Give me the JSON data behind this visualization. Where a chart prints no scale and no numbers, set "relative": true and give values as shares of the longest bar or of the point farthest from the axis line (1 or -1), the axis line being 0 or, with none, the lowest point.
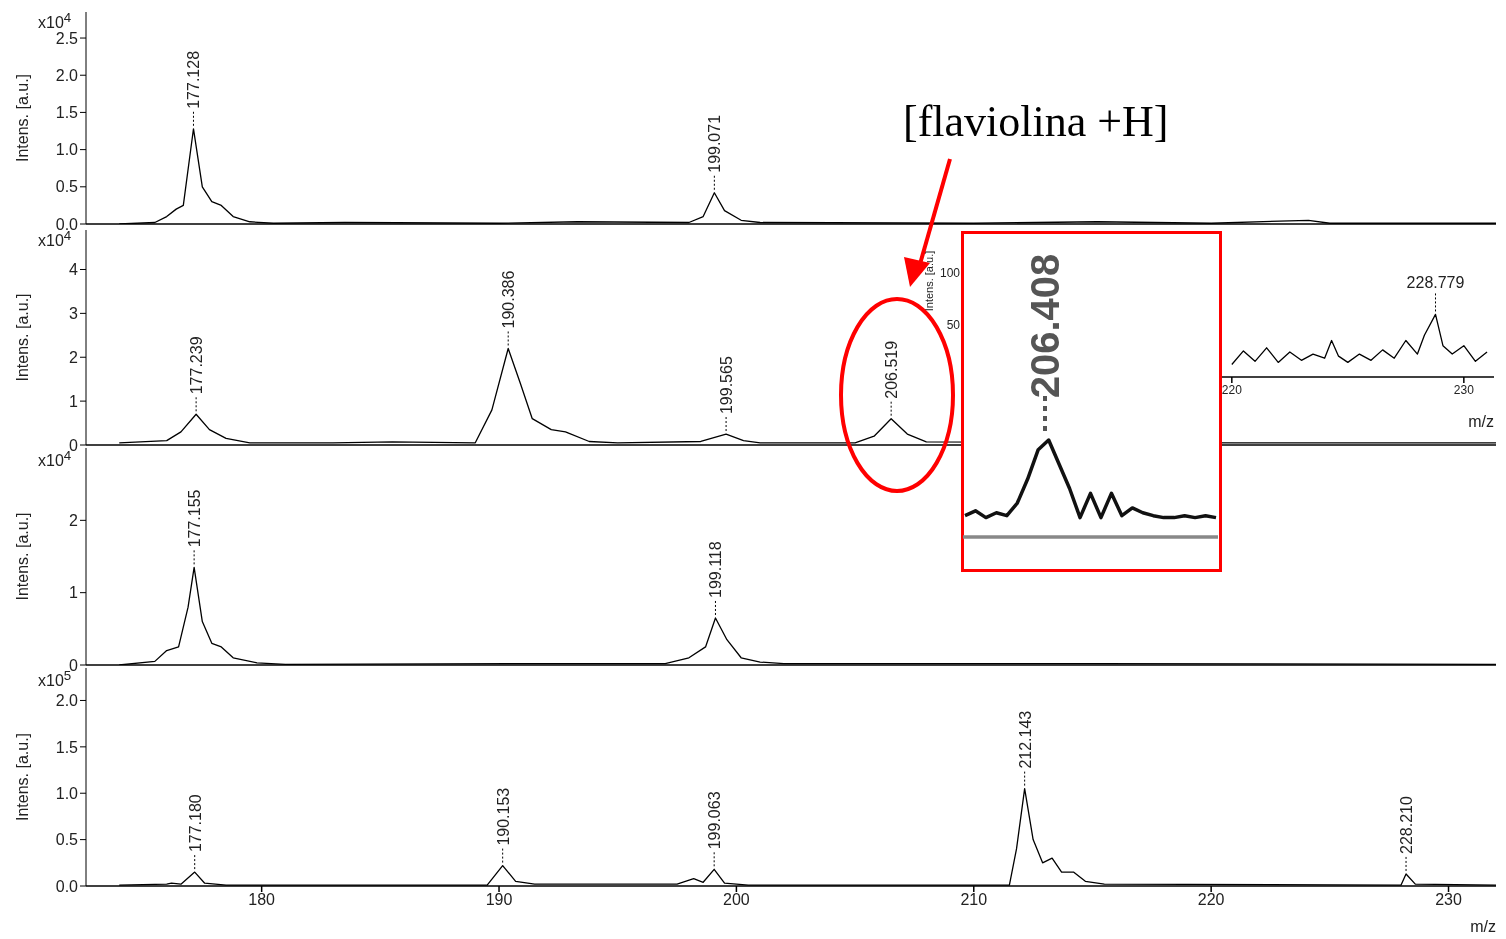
{
  "chart_data": [
    {
      "type": "line",
      "ylabel": "Intens. [a.u.]",
      "color": "#000000",
      "tick_labels": "y",
      "xlim": [
        172.6,
        232
      ],
      "xticks": [
        180,
        190,
        200,
        210,
        220,
        230
      ],
      "ylim": [
        0,
        2.85
      ],
      "yticks": [
        {
          "value": 0,
          "label": "0.0"
        },
        0.5,
        {
          "value": 1,
          "label": "1.0"
        },
        1.5,
        {
          "value": 2,
          "label": "2.0"
        },
        2.5
      ],
      "x": [
        174,
        175.5,
        176.0,
        176.4,
        176.7,
        177.128,
        177.5,
        177.9,
        178.3,
        178.8,
        179.5,
        180.5,
        183.5,
        190,
        193.3,
        198,
        198.6,
        199.071,
        199.5,
        200.2,
        201,
        210,
        215.2,
        220,
        224.1,
        225,
        232
      ],
      "values": [
        0,
        0.02,
        0.1,
        0.2,
        0.25,
        1.28,
        0.5,
        0.3,
        0.25,
        0.1,
        0.03,
        0.01,
        0.02,
        0.01,
        0.03,
        0.02,
        0.1,
        0.42,
        0.18,
        0.05,
        0.02,
        0.01,
        0.03,
        0.01,
        0.05,
        0.01,
        0.01
      ],
      "annotations": [
        "x10$^{4}$",
        {
          "text": "177.128",
          "x": 177.128,
          "y": 1.28
        },
        {
          "text": "199.071",
          "x": 199.071,
          "y": 0.42
        }
      ]
    },
    {
      "type": "line",
      "ylabel": "Intens. [a.u.]",
      "color": "#000000",
      "tick_labels": "y",
      "xlim": [
        172.6,
        232
      ],
      "xticks": [
        180,
        190,
        200,
        210,
        220,
        230
      ],
      "ylim": [
        0,
        4.9
      ],
      "yticks": [
        0,
        1,
        2,
        3,
        4
      ],
      "x": [
        174,
        176,
        176.6,
        177.239,
        177.8,
        178.5,
        179.5,
        183,
        185.5,
        189,
        189.7,
        190.386,
        190.9,
        191.4,
        192.2,
        192.8,
        193.8,
        195,
        198.5,
        199.565,
        200.3,
        201,
        205,
        205.8,
        206.519,
        207.2,
        208,
        221,
        232
      ],
      "values": [
        0.05,
        0.1,
        0.3,
        0.7,
        0.35,
        0.15,
        0.05,
        0.05,
        0.07,
        0.05,
        0.8,
        2.2,
        1.4,
        0.6,
        0.35,
        0.3,
        0.08,
        0.05,
        0.08,
        0.25,
        0.1,
        0.05,
        0.05,
        0.2,
        0.6,
        0.25,
        0.07,
        0.05,
        0.05
      ],
      "annotations": [
        "x10$^{4}$",
        "[flaviolina +H]",
        {
          "text": "177.239",
          "x": 177.239,
          "y": 0.7
        },
        {
          "text": "190.386",
          "x": 190.386,
          "y": 2.2
        },
        {
          "text": "199.565",
          "x": 199.565,
          "y": 0.25
        },
        {
          "text": "206.519",
          "x": 206.519,
          "y": 0.6
        }
      ]
    },
    {
      "type": "line",
      "ylabel": "Intens. [a.u.]",
      "color": "#000000",
      "tick_labels": "y",
      "xlim": [
        172.6,
        232
      ],
      "xticks": [
        180,
        190,
        200,
        210,
        220,
        230
      ],
      "ylim": [
        0,
        3.0
      ],
      "yticks": [
        0,
        1,
        2
      ],
      "x": [
        174,
        175.5,
        176.0,
        176.5,
        176.9,
        177.155,
        177.5,
        177.9,
        178.3,
        178.8,
        179.8,
        181,
        193,
        197,
        198,
        198.7,
        199.118,
        199.6,
        200.2,
        201,
        202,
        215,
        232
      ],
      "values": [
        0,
        0.05,
        0.2,
        0.25,
        0.8,
        1.35,
        0.6,
        0.3,
        0.25,
        0.1,
        0.03,
        0.01,
        0.02,
        0.02,
        0.1,
        0.25,
        0.65,
        0.35,
        0.1,
        0.04,
        0.02,
        0.02,
        0.01
      ],
      "annotations": [
        "x10$^{4}$",
        {
          "text": "177.155",
          "x": 177.155,
          "y": 1.35
        },
        {
          "text": "199.118",
          "x": 199.118,
          "y": 0.65
        }
      ]
    },
    {
      "type": "line",
      "ylabel": "Intens. [a.u.]",
      "xlabel": "m/z",
      "color": "#000000",
      "xlim": [
        172.6,
        232
      ],
      "xticks": [
        180,
        190,
        200,
        210,
        220,
        230
      ],
      "ylim": [
        0,
        2.35
      ],
      "yticks": [
        {
          "value": 0,
          "label": "0.0"
        },
        0.5,
        {
          "value": 1,
          "label": "1.0"
        },
        1.5,
        {
          "value": 2,
          "label": "2.0"
        }
      ],
      "x": [
        174,
        176.0,
        176.2,
        176.6,
        177.18,
        177.6,
        178.5,
        189.5,
        190.153,
        190.7,
        191.5,
        197.5,
        198.2,
        198.6,
        199.063,
        199.5,
        200.5,
        211.5,
        211.8,
        212.143,
        212.5,
        212.9,
        213.3,
        213.7,
        214.2,
        214.7,
        215.5,
        228,
        228.21,
        228.6,
        232
      ],
      "values": [
        0.01,
        0.02,
        0.03,
        0.02,
        0.15,
        0.03,
        0.01,
        0.01,
        0.22,
        0.05,
        0.02,
        0.02,
        0.08,
        0.04,
        0.18,
        0.03,
        0.01,
        0.01,
        0.4,
        1.05,
        0.5,
        0.25,
        0.3,
        0.15,
        0.15,
        0.05,
        0.02,
        0.01,
        0.13,
        0.02,
        0.01
      ],
      "annotations": [
        "x10$^{5}$",
        {
          "text": "177.180",
          "x": 177.18,
          "y": 0.15
        },
        {
          "text": "190.153",
          "x": 190.153,
          "y": 0.22
        },
        {
          "text": "199.063",
          "x": 199.063,
          "y": 0.18
        },
        {
          "text": "212.143",
          "x": 212.143,
          "y": 1.05
        },
        {
          "text": "228.210",
          "x": 228.21,
          "y": 0.13
        }
      ]
    },
    {
      "type": "line",
      "ylabel": "Intens. [a.u.]",
      "xlabel": "m/z",
      "color": "#000000",
      "xlim": [
        208.5,
        231.3
      ],
      "xticks": [
        220,
        230
      ],
      "ylim": [
        0,
        140
      ],
      "yticks": [
        50,
        100
      ],
      "x": [
        220,
        220.5,
        221,
        221.5,
        222,
        222.5,
        223,
        223.5,
        224,
        224.3,
        224.6,
        225,
        225.5,
        226,
        226.5,
        227,
        227.5,
        228,
        228.3,
        228.779,
        229.1,
        229.5,
        230,
        230.5,
        231
      ],
      "values": [
        12,
        25,
        15,
        28,
        14,
        24,
        16,
        22,
        18,
        35,
        20,
        14,
        22,
        16,
        26,
        18,
        35,
        22,
        40,
        60,
        30,
        22,
        30,
        15,
        24
      ],
      "annotations": [
        {
          "text": "228.779",
          "x": 228.779,
          "y": 60
        }
      ]
    },
    {
      "type": "line",
      "relative": true,
      "color": "#111111",
      "tick_labels": false,
      "categories": [
        null,
        null,
        null,
        null,
        null,
        null,
        null,
        null,
        null,
        null,
        null,
        null,
        null,
        null,
        null,
        null,
        null,
        null,
        null,
        null,
        null,
        null,
        null,
        null,
        null
      ],
      "values": [
        0.22,
        0.27,
        0.2,
        0.25,
        0.22,
        0.35,
        0.6,
        0.9,
        1,
        0.75,
        0.5,
        0.2,
        0.45,
        0.2,
        0.45,
        0.22,
        0.3,
        0.25,
        0.22,
        0.2,
        0.2,
        0.22,
        0.2,
        0.22,
        0.2
      ],
      "annotations": [
        "206.408"
      ]
    }
  ]
}
